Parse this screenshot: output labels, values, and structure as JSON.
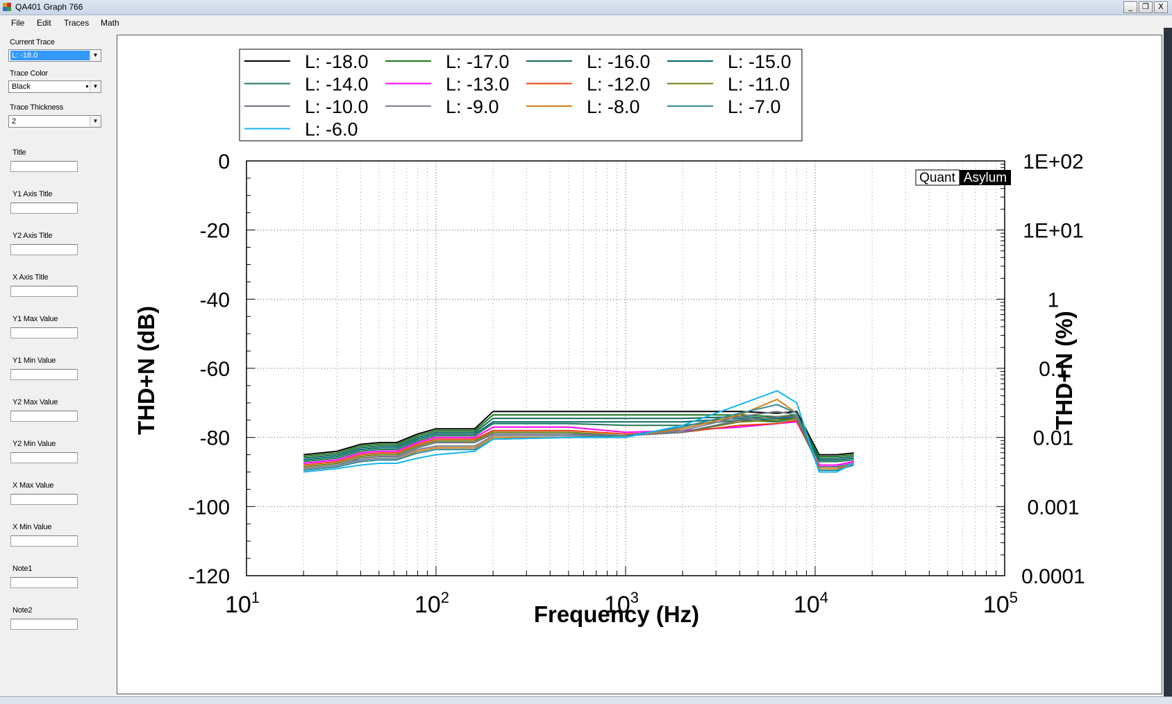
{
  "window": {
    "title": "QA401 Graph 766",
    "buttons": {
      "minimize": "_",
      "restore": "❐",
      "close": "X"
    }
  },
  "menu": [
    "File",
    "Edit",
    "Traces",
    "Math"
  ],
  "panel": {
    "current_trace_label": "Current Trace",
    "current_trace_value": "L: -18.0",
    "trace_color_label": "Trace Color",
    "trace_color_value": "Black",
    "trace_thickness_label": "Trace Thickness",
    "trace_thickness_value": "2",
    "fields": [
      {
        "label": "Title",
        "value": ""
      },
      {
        "label": "Y1 Axis Title",
        "value": ""
      },
      {
        "label": "Y2 Axis Title",
        "value": ""
      },
      {
        "label": "X Axis Title",
        "value": ""
      },
      {
        "label": "Y1 Max Value",
        "value": ""
      },
      {
        "label": "Y1 Min Value",
        "value": ""
      },
      {
        "label": "Y2 Max Value",
        "value": ""
      },
      {
        "label": "Y2 Min Value",
        "value": ""
      },
      {
        "label": "X Max Value",
        "value": ""
      },
      {
        "label": "X Min Value",
        "value": ""
      },
      {
        "label": "Note1",
        "value": ""
      },
      {
        "label": "Note2",
        "value": ""
      }
    ]
  },
  "watermark": {
    "left": "Quant",
    "right": "Asylum"
  },
  "chart_data": {
    "type": "line",
    "title": "",
    "xlabel": "Frequency (Hz)",
    "ylabel": "THD+N (dB)",
    "y2label": "THD+N (%)",
    "xscale": "log",
    "xlim": [
      10,
      100000
    ],
    "ylim": [
      -120,
      0
    ],
    "x_tick_labels": [
      {
        "base": "10",
        "exp": "1"
      },
      {
        "base": "10",
        "exp": "2"
      },
      {
        "base": "10",
        "exp": "3"
      },
      {
        "base": "10",
        "exp": "4"
      },
      {
        "base": "10",
        "exp": "5"
      }
    ],
    "y_ticks": [
      0,
      -20,
      -40,
      -60,
      -80,
      -100,
      -120
    ],
    "y2_tick_labels": [
      "1E+02",
      "1E+01",
      "1",
      "0.1",
      "0.01",
      "0.001",
      "0.0001"
    ],
    "grid": true,
    "legend_position": "top",
    "x": [
      20,
      30,
      40,
      50,
      62,
      80,
      100,
      160,
      200,
      500,
      1000,
      2000,
      4000,
      6300,
      8000,
      10500,
      13000,
      16000
    ],
    "series": [
      {
        "name": "L: -18.0",
        "color": "#000000",
        "values": [
          -85,
          -84,
          -82,
          -81.5,
          -81.5,
          -79,
          -77.5,
          -77.5,
          -72.5,
          -72.5,
          -72.5,
          -72.5,
          -72.5,
          -73,
          -72.5,
          -85,
          -85,
          -84.5
        ]
      },
      {
        "name": "L: -17.0",
        "color": "#1a7a1a",
        "values": [
          -85.5,
          -84.5,
          -82.5,
          -82,
          -82,
          -79.5,
          -78,
          -78,
          -73.5,
          -73.5,
          -73.5,
          -73.5,
          -73.5,
          -74,
          -73.5,
          -85.5,
          -85.5,
          -85
        ]
      },
      {
        "name": "L: -16.0",
        "color": "#116655",
        "values": [
          -86,
          -85,
          -83,
          -82.5,
          -82.5,
          -80,
          -78.5,
          -78.5,
          -74.5,
          -74.5,
          -74.5,
          -74.5,
          -74,
          -74.5,
          -74,
          -86,
          -86,
          -85.5
        ]
      },
      {
        "name": "L: -15.0",
        "color": "#006a6a",
        "values": [
          -86.5,
          -85.5,
          -83.5,
          -83,
          -83,
          -80.5,
          -79,
          -79,
          -75.5,
          -75.5,
          -75.5,
          -75.5,
          -74.5,
          -75,
          -74,
          -86.5,
          -86.5,
          -86
        ]
      },
      {
        "name": "L: -14.0",
        "color": "#227755",
        "values": [
          -87,
          -86,
          -84,
          -83.5,
          -83.5,
          -81,
          -79.5,
          -79.5,
          -76,
          -76,
          -76.5,
          -76.5,
          -75,
          -75.5,
          -74.5,
          -87,
          -87,
          -86.5
        ]
      },
      {
        "name": "L: -13.0",
        "color": "#ff00ff",
        "values": [
          -87.5,
          -86.5,
          -84.5,
          -84,
          -84,
          -81.5,
          -80,
          -80,
          -77,
          -77,
          -78.5,
          -78,
          -77,
          -76,
          -75.5,
          -88,
          -88,
          -87
        ]
      },
      {
        "name": "L: -12.0",
        "color": "#e84010",
        "values": [
          -88,
          -87,
          -85,
          -84.5,
          -84.5,
          -82,
          -80.5,
          -80.5,
          -78,
          -78,
          -79,
          -78.5,
          -76.5,
          -76,
          -75,
          -88.5,
          -88.5,
          -87.5
        ]
      },
      {
        "name": "L: -11.0",
        "color": "#6b7e12",
        "values": [
          -88.5,
          -87.5,
          -85.5,
          -85,
          -85,
          -82.5,
          -81,
          -81,
          -78.5,
          -78.5,
          -79.5,
          -78.5,
          -75.5,
          -75,
          -74.5,
          -88.5,
          -88.5,
          -87.5
        ]
      },
      {
        "name": "L: -10.0",
        "color": "#6a7080",
        "values": [
          -89,
          -88,
          -86,
          -85.5,
          -85.5,
          -83,
          -81.5,
          -81.5,
          -79,
          -79,
          -79.5,
          -78.5,
          -75,
          -74,
          -74,
          -88.5,
          -88.5,
          -87.5
        ]
      },
      {
        "name": "L: -9.0",
        "color": "#7a8090",
        "values": [
          -89,
          -88,
          -86.5,
          -86,
          -86,
          -83.5,
          -82.5,
          -82.5,
          -79.5,
          -79.5,
          -79.5,
          -78,
          -74,
          -72.5,
          -73.5,
          -89,
          -89,
          -87.5
        ]
      },
      {
        "name": "L: -8.0",
        "color": "#d08018",
        "values": [
          -89.5,
          -88.5,
          -87,
          -86.5,
          -86.5,
          -84,
          -83,
          -83,
          -80,
          -80,
          -79.5,
          -77.5,
          -73.5,
          -69,
          -73,
          -89,
          -89,
          -88
        ]
      },
      {
        "name": "L: -7.0",
        "color": "#308a9a",
        "values": [
          -89.5,
          -88.5,
          -87,
          -86.5,
          -86.5,
          -84.5,
          -83.5,
          -83.5,
          -80.5,
          -80,
          -79.5,
          -77,
          -73,
          -70.5,
          -73,
          -89.5,
          -89.5,
          -88
        ]
      },
      {
        "name": "L: -6.0",
        "color": "#18b4f0",
        "values": [
          -90,
          -89,
          -88,
          -87.5,
          -87.5,
          -86,
          -85,
          -84,
          -80.5,
          -80,
          -80,
          -76.5,
          -70.5,
          -66.5,
          -70,
          -90,
          -90,
          -87.5
        ]
      }
    ]
  }
}
